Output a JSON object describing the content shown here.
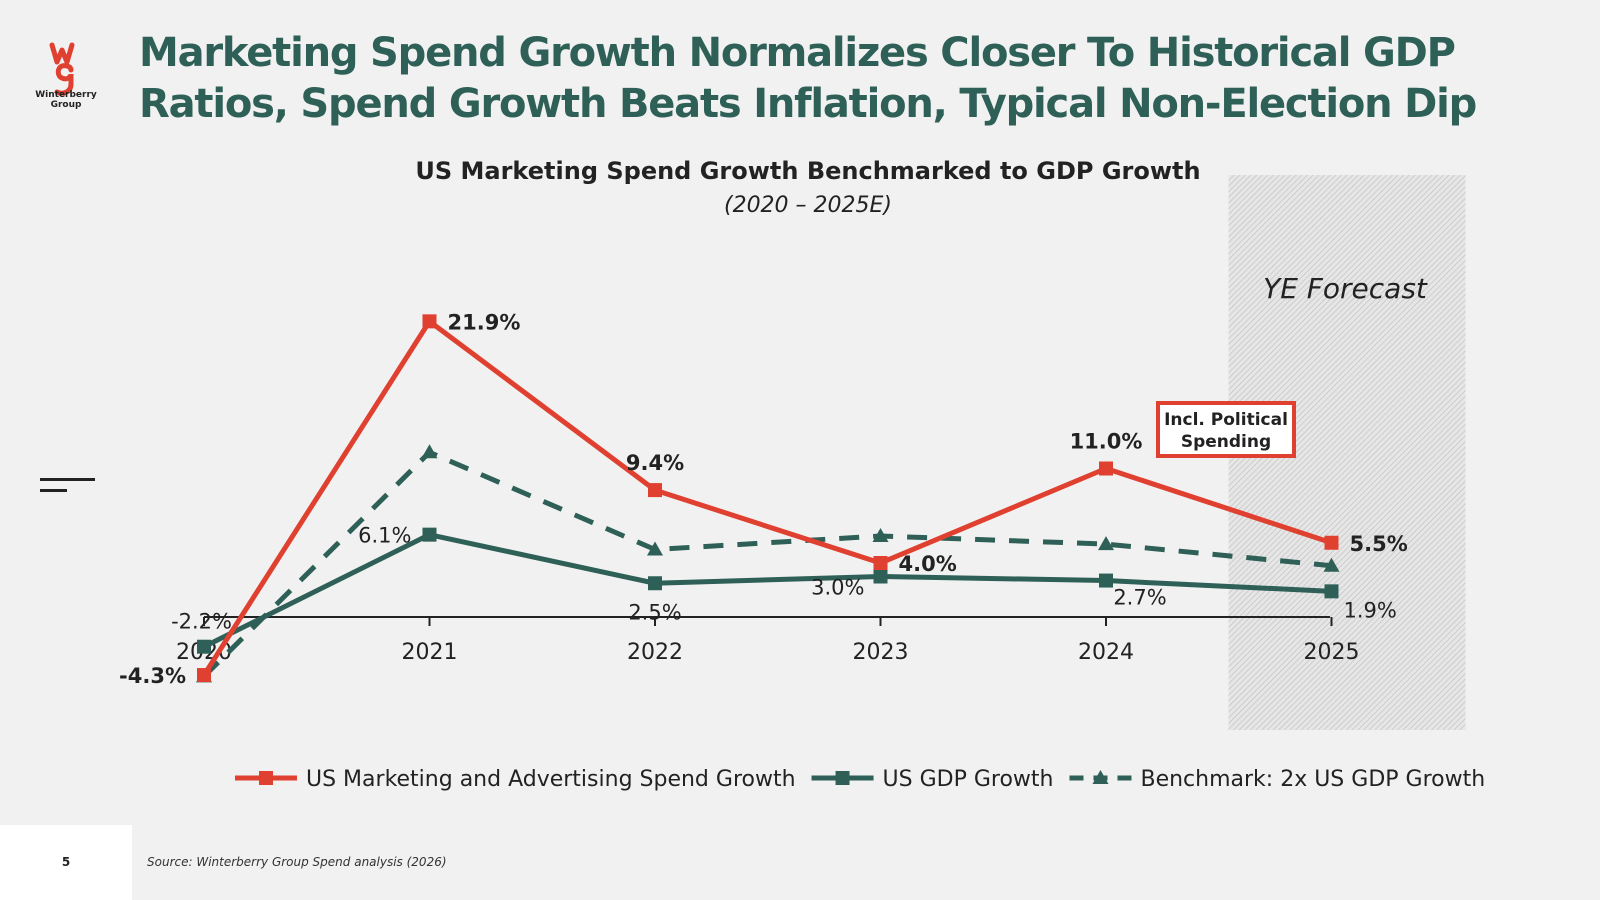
{
  "brand": {
    "logo_line1": "Winterberry",
    "logo_line2": "Group",
    "logo_icon": "wg-monogram-icon",
    "accent_red": "#e0402f",
    "accent_green": "#2e6057"
  },
  "headline": "Marketing Spend Growth Normalizes Closer To Historical GDP Ratios, Spend Growth Beats Inflation, Typical Non-Election Dip",
  "forecast_label": "YE Forecast",
  "callout": {
    "line1": "Incl. Political",
    "line2": "Spending"
  },
  "footer": {
    "page_number": "5",
    "source": "Source: Winterberry Group Spend analysis (2026)"
  },
  "chart_data": {
    "type": "line",
    "title": "US Marketing Spend Growth Benchmarked to GDP Growth",
    "subtitle": "(2020 – 2025E)",
    "xlabel": "",
    "ylabel": "",
    "categories": [
      "2020",
      "2021",
      "2022",
      "2023",
      "2024",
      "2025"
    ],
    "ylim": [
      -6,
      24
    ],
    "grid": false,
    "legend_position": "bottom",
    "forecast_region": "2025",
    "series": [
      {
        "name": "US Marketing and Advertising Spend Growth",
        "values": [
          -4.3,
          21.9,
          9.4,
          4.0,
          11.0,
          5.5
        ],
        "labels": [
          "-4.3%",
          "21.9%",
          "9.4%",
          "4.0%",
          "11.0%",
          "5.5%"
        ],
        "color": "#e0402f",
        "marker": "square",
        "dash": "solid"
      },
      {
        "name": "US GDP Growth",
        "values": [
          -2.2,
          6.1,
          2.5,
          3.0,
          2.7,
          1.9
        ],
        "labels": [
          "-2.2%",
          "6.1%",
          "2.5%",
          "3.0%",
          "2.7%",
          "1.9%"
        ],
        "color": "#2e6057",
        "marker": "square",
        "dash": "solid"
      },
      {
        "name": "Benchmark: 2x US GDP Growth",
        "values": [
          -4.4,
          12.2,
          5.0,
          6.0,
          5.4,
          3.8
        ],
        "labels": [],
        "color": "#2e6057",
        "marker": "triangle",
        "dash": "dashed"
      }
    ]
  }
}
